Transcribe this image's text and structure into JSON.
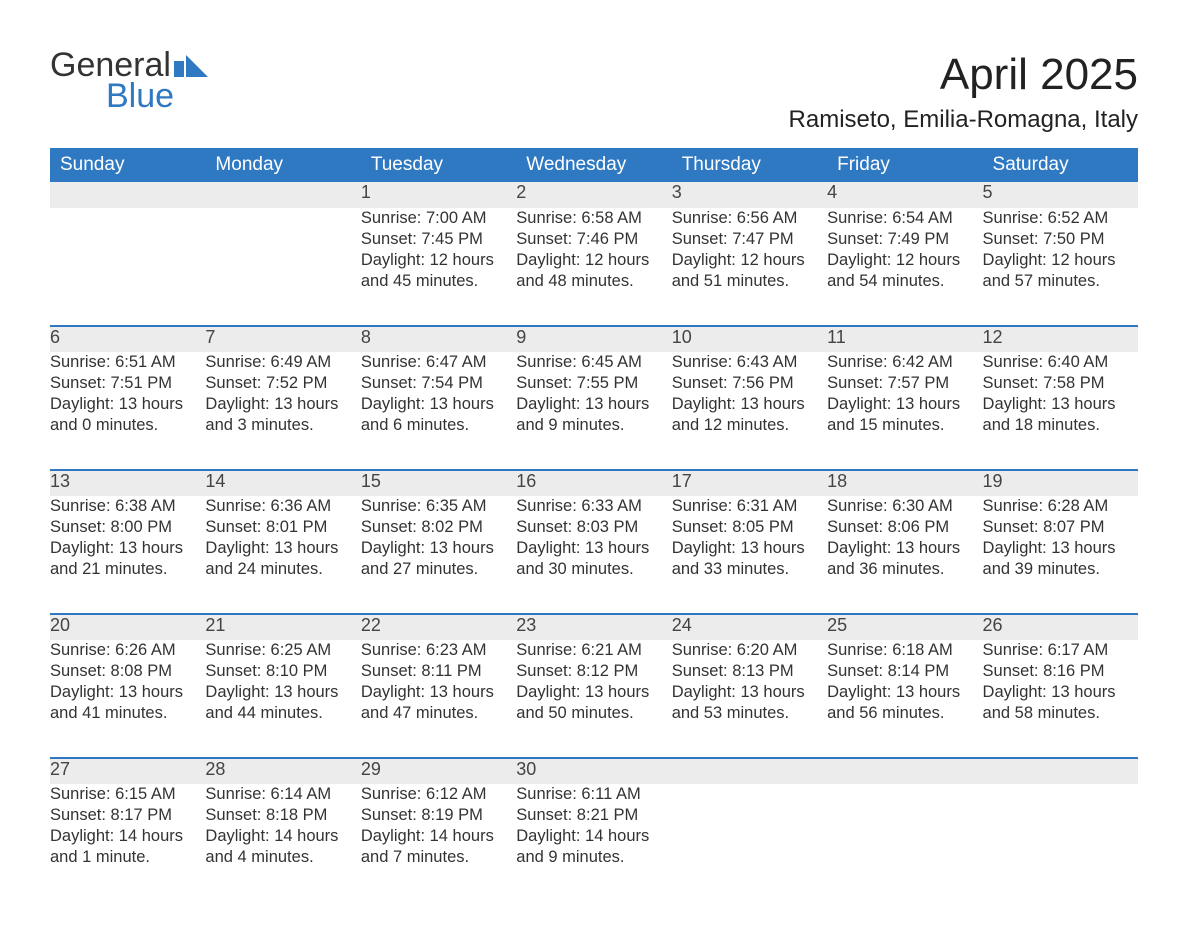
{
  "brand": {
    "word1": "General",
    "word2": "Blue"
  },
  "title": "April 2025",
  "subtitle": "Ramiseto, Emilia-Romagna, Italy",
  "colors": {
    "header_bg": "#2f79c2",
    "header_text": "#ffffff",
    "daynum_bg": "#ececec",
    "border_top": "#2f79c2",
    "body_text": "#333333",
    "page_bg": "#ffffff",
    "logo_blue": "#2f79c2",
    "logo_gray": "#333333"
  },
  "typography": {
    "title_fontsize": 44,
    "subtitle_fontsize": 24,
    "header_fontsize": 19,
    "daynum_fontsize": 18,
    "cell_fontsize": 16.5
  },
  "weekdays": [
    "Sunday",
    "Monday",
    "Tuesday",
    "Wednesday",
    "Thursday",
    "Friday",
    "Saturday"
  ],
  "weeks": [
    {
      "nums": [
        "",
        "",
        "1",
        "2",
        "3",
        "4",
        "5"
      ],
      "cells": [
        {
          "sunrise": "",
          "sunset": "",
          "daylight": ""
        },
        {
          "sunrise": "",
          "sunset": "",
          "daylight": ""
        },
        {
          "sunrise": "Sunrise: 7:00 AM",
          "sunset": "Sunset: 7:45 PM",
          "daylight": "Daylight: 12 hours and 45 minutes."
        },
        {
          "sunrise": "Sunrise: 6:58 AM",
          "sunset": "Sunset: 7:46 PM",
          "daylight": "Daylight: 12 hours and 48 minutes."
        },
        {
          "sunrise": "Sunrise: 6:56 AM",
          "sunset": "Sunset: 7:47 PM",
          "daylight": "Daylight: 12 hours and 51 minutes."
        },
        {
          "sunrise": "Sunrise: 6:54 AM",
          "sunset": "Sunset: 7:49 PM",
          "daylight": "Daylight: 12 hours and 54 minutes."
        },
        {
          "sunrise": "Sunrise: 6:52 AM",
          "sunset": "Sunset: 7:50 PM",
          "daylight": "Daylight: 12 hours and 57 minutes."
        }
      ]
    },
    {
      "nums": [
        "6",
        "7",
        "8",
        "9",
        "10",
        "11",
        "12"
      ],
      "cells": [
        {
          "sunrise": "Sunrise: 6:51 AM",
          "sunset": "Sunset: 7:51 PM",
          "daylight": "Daylight: 13 hours and 0 minutes."
        },
        {
          "sunrise": "Sunrise: 6:49 AM",
          "sunset": "Sunset: 7:52 PM",
          "daylight": "Daylight: 13 hours and 3 minutes."
        },
        {
          "sunrise": "Sunrise: 6:47 AM",
          "sunset": "Sunset: 7:54 PM",
          "daylight": "Daylight: 13 hours and 6 minutes."
        },
        {
          "sunrise": "Sunrise: 6:45 AM",
          "sunset": "Sunset: 7:55 PM",
          "daylight": "Daylight: 13 hours and 9 minutes."
        },
        {
          "sunrise": "Sunrise: 6:43 AM",
          "sunset": "Sunset: 7:56 PM",
          "daylight": "Daylight: 13 hours and 12 minutes."
        },
        {
          "sunrise": "Sunrise: 6:42 AM",
          "sunset": "Sunset: 7:57 PM",
          "daylight": "Daylight: 13 hours and 15 minutes."
        },
        {
          "sunrise": "Sunrise: 6:40 AM",
          "sunset": "Sunset: 7:58 PM",
          "daylight": "Daylight: 13 hours and 18 minutes."
        }
      ]
    },
    {
      "nums": [
        "13",
        "14",
        "15",
        "16",
        "17",
        "18",
        "19"
      ],
      "cells": [
        {
          "sunrise": "Sunrise: 6:38 AM",
          "sunset": "Sunset: 8:00 PM",
          "daylight": "Daylight: 13 hours and 21 minutes."
        },
        {
          "sunrise": "Sunrise: 6:36 AM",
          "sunset": "Sunset: 8:01 PM",
          "daylight": "Daylight: 13 hours and 24 minutes."
        },
        {
          "sunrise": "Sunrise: 6:35 AM",
          "sunset": "Sunset: 8:02 PM",
          "daylight": "Daylight: 13 hours and 27 minutes."
        },
        {
          "sunrise": "Sunrise: 6:33 AM",
          "sunset": "Sunset: 8:03 PM",
          "daylight": "Daylight: 13 hours and 30 minutes."
        },
        {
          "sunrise": "Sunrise: 6:31 AM",
          "sunset": "Sunset: 8:05 PM",
          "daylight": "Daylight: 13 hours and 33 minutes."
        },
        {
          "sunrise": "Sunrise: 6:30 AM",
          "sunset": "Sunset: 8:06 PM",
          "daylight": "Daylight: 13 hours and 36 minutes."
        },
        {
          "sunrise": "Sunrise: 6:28 AM",
          "sunset": "Sunset: 8:07 PM",
          "daylight": "Daylight: 13 hours and 39 minutes."
        }
      ]
    },
    {
      "nums": [
        "20",
        "21",
        "22",
        "23",
        "24",
        "25",
        "26"
      ],
      "cells": [
        {
          "sunrise": "Sunrise: 6:26 AM",
          "sunset": "Sunset: 8:08 PM",
          "daylight": "Daylight: 13 hours and 41 minutes."
        },
        {
          "sunrise": "Sunrise: 6:25 AM",
          "sunset": "Sunset: 8:10 PM",
          "daylight": "Daylight: 13 hours and 44 minutes."
        },
        {
          "sunrise": "Sunrise: 6:23 AM",
          "sunset": "Sunset: 8:11 PM",
          "daylight": "Daylight: 13 hours and 47 minutes."
        },
        {
          "sunrise": "Sunrise: 6:21 AM",
          "sunset": "Sunset: 8:12 PM",
          "daylight": "Daylight: 13 hours and 50 minutes."
        },
        {
          "sunrise": "Sunrise: 6:20 AM",
          "sunset": "Sunset: 8:13 PM",
          "daylight": "Daylight: 13 hours and 53 minutes."
        },
        {
          "sunrise": "Sunrise: 6:18 AM",
          "sunset": "Sunset: 8:14 PM",
          "daylight": "Daylight: 13 hours and 56 minutes."
        },
        {
          "sunrise": "Sunrise: 6:17 AM",
          "sunset": "Sunset: 8:16 PM",
          "daylight": "Daylight: 13 hours and 58 minutes."
        }
      ]
    },
    {
      "nums": [
        "27",
        "28",
        "29",
        "30",
        "",
        "",
        ""
      ],
      "cells": [
        {
          "sunrise": "Sunrise: 6:15 AM",
          "sunset": "Sunset: 8:17 PM",
          "daylight": "Daylight: 14 hours and 1 minute."
        },
        {
          "sunrise": "Sunrise: 6:14 AM",
          "sunset": "Sunset: 8:18 PM",
          "daylight": "Daylight: 14 hours and 4 minutes."
        },
        {
          "sunrise": "Sunrise: 6:12 AM",
          "sunset": "Sunset: 8:19 PM",
          "daylight": "Daylight: 14 hours and 7 minutes."
        },
        {
          "sunrise": "Sunrise: 6:11 AM",
          "sunset": "Sunset: 8:21 PM",
          "daylight": "Daylight: 14 hours and 9 minutes."
        },
        {
          "sunrise": "",
          "sunset": "",
          "daylight": ""
        },
        {
          "sunrise": "",
          "sunset": "",
          "daylight": ""
        },
        {
          "sunrise": "",
          "sunset": "",
          "daylight": ""
        }
      ]
    }
  ]
}
